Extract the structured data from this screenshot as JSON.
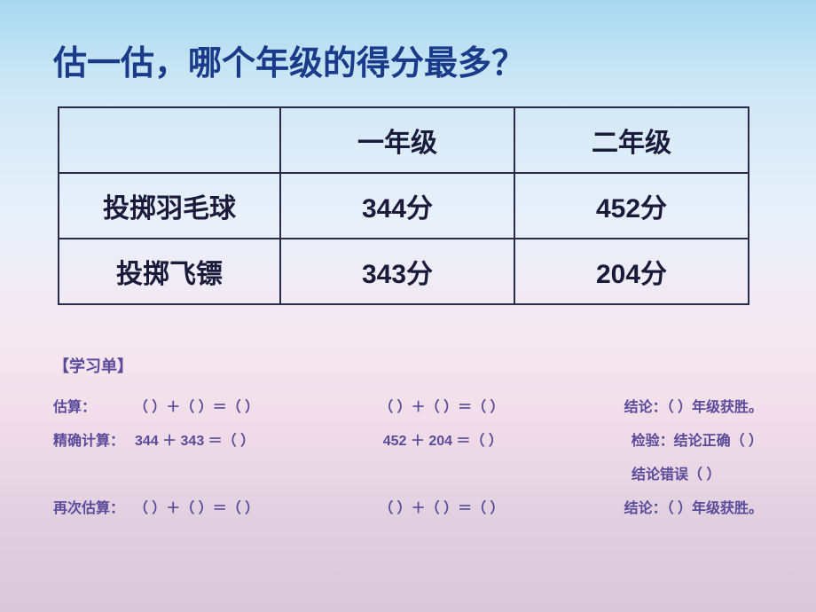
{
  "title": "估一估，哪个年级的得分最多？",
  "table": {
    "columns": [
      "",
      "一年级",
      "二年级"
    ],
    "rows": [
      {
        "header": "投掷羽毛球",
        "values": [
          "344分",
          "452分"
        ]
      },
      {
        "header": "投掷飞镖",
        "values": [
          "343分",
          "204分"
        ]
      }
    ],
    "border_color": "#2a2a4a",
    "text_color": "#1a1a3a",
    "font_size_pt": 22
  },
  "worksheet": {
    "section_title": "【学习单】",
    "lines": {
      "estimate": {
        "label": "估算：",
        "eq1": "（   ）＋（   ）＝（   ）",
        "eq2": "（   ）＋（   ）＝（   ）",
        "concl": "结论：（   ）年级获胜。"
      },
      "exact": {
        "label": "精确计算：",
        "eq1": "344  ＋  343  ＝（   ）",
        "eq2": "452  ＋  204  ＝（   ）",
        "concl": "检验：结论正确（   ）"
      },
      "exact2": {
        "concl": "结论错误（   ）"
      },
      "reestimate": {
        "label": "再次估算：",
        "eq1": "（   ）＋（   ）＝（   ）",
        "eq2": "（   ）＋（   ）＝（   ）",
        "concl": "结论：（   ）年级获胜。"
      }
    },
    "text_color": "#5a4a9a"
  },
  "background": {
    "gradient_stops": [
      "#a8d8f0",
      "#d0e8f5",
      "#e8f0fa",
      "#f5e8f0",
      "#f0dce8",
      "#e0d0e0",
      "#d8c8d8"
    ]
  }
}
